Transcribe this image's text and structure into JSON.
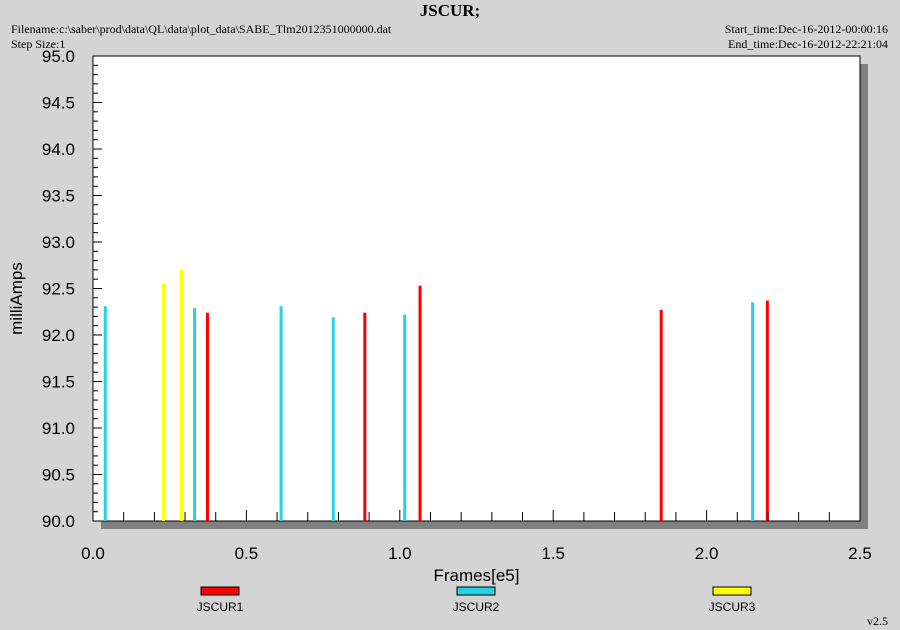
{
  "header": {
    "title": "JSCUR;",
    "filename": "Filename:c:\\saber\\prod\\data\\QL\\data\\plot_data\\SABE_Tlm2012351000000.dat",
    "step_size": "Step Size:1",
    "start_time": "Start_time:Dec-16-2012-00:00:16",
    "end_time": "End_time:Dec-16-2012-22:21:04"
  },
  "footer": {
    "version": "v2.5"
  },
  "colors": {
    "background": "#d4d4d4",
    "plot_bg": "#ffffff",
    "shadow": "#808080"
  },
  "chart_data": {
    "type": "bar",
    "title": "JSCUR;",
    "xlabel": "Frames[e5]",
    "ylabel": "milliAmps",
    "xlim": [
      0.0,
      2.5
    ],
    "ylim": [
      90.0,
      95.0
    ],
    "x_ticks": [
      "0.0",
      "0.5",
      "1.0",
      "1.5",
      "2.0",
      "2.5"
    ],
    "y_ticks": [
      "90.0",
      "90.5",
      "91.0",
      "91.5",
      "92.0",
      "92.5",
      "93.0",
      "93.5",
      "94.0",
      "94.5",
      "95.0"
    ],
    "grid": false,
    "legend_position": "bottom",
    "series": [
      {
        "name": "JSCUR1",
        "color": "#ff0000",
        "points": [
          [
            0.373,
            92.24
          ],
          [
            0.886,
            92.24
          ],
          [
            1.066,
            92.53
          ],
          [
            1.852,
            92.27
          ],
          [
            2.198,
            92.37
          ]
        ]
      },
      {
        "name": "JSCUR2",
        "color": "#22d3e6",
        "points": [
          [
            0.04,
            92.31
          ],
          [
            0.331,
            92.29
          ],
          [
            0.613,
            92.31
          ],
          [
            0.783,
            92.19
          ],
          [
            1.016,
            92.22
          ],
          [
            2.15,
            92.35
          ]
        ]
      },
      {
        "name": "JSCUR3",
        "color": "#ffff00",
        "points": [
          [
            0.23,
            92.55
          ],
          [
            0.288,
            92.7
          ]
        ]
      }
    ]
  }
}
